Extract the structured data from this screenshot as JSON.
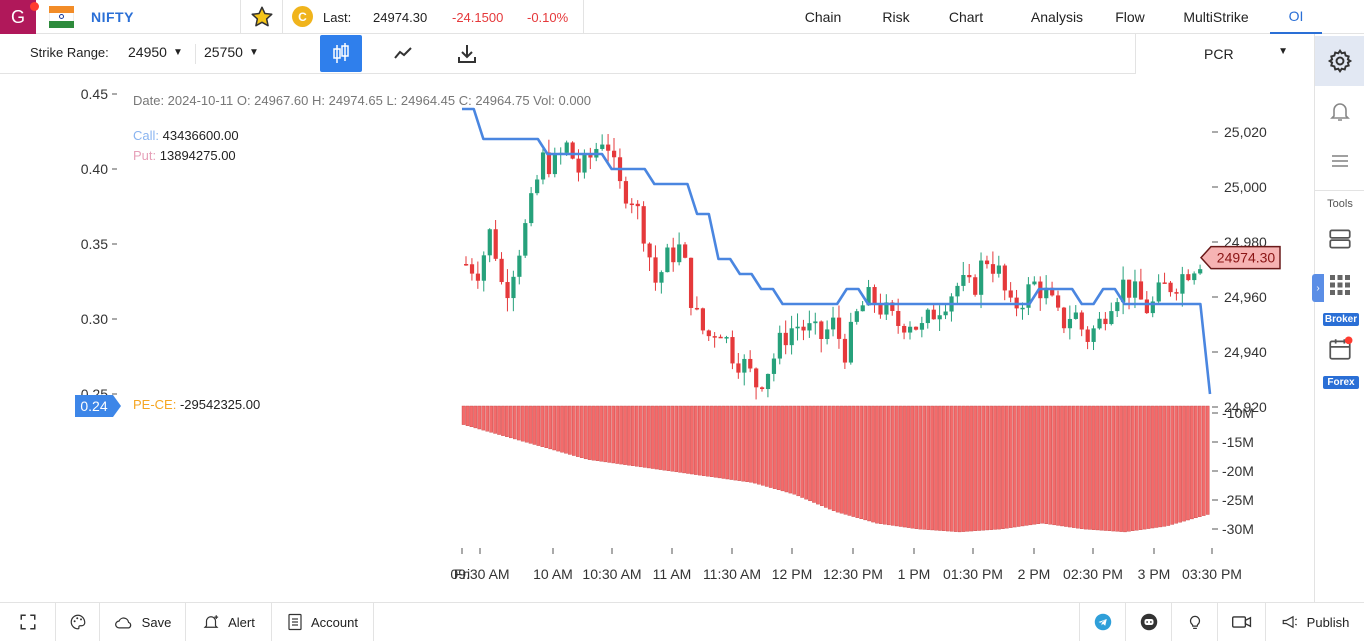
{
  "header": {
    "logo_letter": "G",
    "symbol": "NIFTY",
    "last_label": "Last:",
    "last_value": "24974.30",
    "change": "-24.1500",
    "change_pct": "-0.10%",
    "nav": [
      "Chain",
      "Risk",
      "Chart",
      "Analysis",
      "Flow",
      "MultiStrike",
      "OI"
    ],
    "active_nav": "OI",
    "colors": {
      "negative": "#e5393b",
      "accent": "#2a6fd6"
    }
  },
  "toolbar": {
    "strike_range_label": "Strike Range:",
    "strike_from": "24950",
    "strike_to": "25750",
    "indicator": "PCR",
    "icons": [
      "candlestick-icon",
      "line-chart-icon",
      "download-icon"
    ]
  },
  "sidebar": {
    "icons": [
      "gear-icon",
      "bell-icon",
      "list-icon",
      "server-icon",
      "grid-icon",
      "calendar-icon"
    ],
    "tools_label": "Tools",
    "broker_badge": "Broker",
    "forex_badge": "Forex"
  },
  "chart_info": {
    "ohlc_line": "Date: 2024-10-11 O: 24967.60 H: 24974.65 L: 24964.45 C: 24964.75 Vol: 0.000",
    "call_label": "Call:",
    "call_value": "43436600.00",
    "put_label": "Put:",
    "put_value": "13894275.00",
    "pece_label": "PE-CE:",
    "pece_value": "-29542325.00",
    "pcr_current": "0.24",
    "price_current": "24974.30",
    "colors": {
      "up": "#26a17b",
      "down": "#e5393b",
      "pcr_line": "#4a86e0",
      "volume": "#f36b6b",
      "pece_label": "#f5a623"
    }
  },
  "chart_data": {
    "type": "candlestick",
    "left_axis": {
      "label": "PCR",
      "ticks": [
        "0.45",
        "0.40",
        "0.35",
        "0.30",
        "0.25"
      ],
      "range": [
        0.24,
        0.45
      ]
    },
    "right_axis": {
      "label": "Price",
      "ticks": [
        "25,020",
        "25,000",
        "24,980",
        "24,960",
        "24,940",
        "24,920"
      ],
      "range": [
        24920,
        25030
      ]
    },
    "pece_axis": {
      "ticks": [
        "-10M",
        "-15M",
        "-20M",
        "-25M",
        "-30M"
      ],
      "range": [
        -31000000,
        -10000000
      ]
    },
    "x_ticks": [
      "Fri",
      "09:30 AM",
      "10 AM",
      "10:30 AM",
      "11 AM",
      "11:30 AM",
      "12 PM",
      "12:30 PM",
      "1 PM",
      "01:30 PM",
      "2 PM",
      "02:30 PM",
      "3 PM",
      "03:30 PM"
    ],
    "candles_close_path": [
      24972,
      24970,
      24985,
      24960,
      24975,
      24990,
      25010,
      25008,
      25015,
      25005,
      25012,
      25020,
      25000,
      24998,
      24985,
      24965,
      24975,
      24978,
      24955,
      24945,
      24950,
      24940,
      24935,
      24928,
      24935,
      24945,
      24950,
      24948,
      24945,
      24950,
      24940,
      24955,
      24960,
      24955,
      24950,
      24952,
      24948,
      24955,
      24960,
      24965,
      24962,
      24975,
      24970,
      24955,
      24960,
      24965,
      24960,
      24950,
      24955,
      24945,
      24950,
      24960,
      24965,
      24960,
      24955,
      24963,
      24965,
      24970,
      24974
    ],
    "pcr_line": [
      0.44,
      0.42,
      0.42,
      0.42,
      0.41,
      0.41,
      0.41,
      0.4,
      0.4,
      0.39,
      0.39,
      0.37,
      0.34,
      0.33,
      0.32,
      0.31,
      0.31,
      0.31,
      0.32,
      0.31,
      0.31,
      0.31,
      0.31,
      0.31,
      0.31,
      0.31,
      0.31,
      0.32,
      0.32,
      0.31,
      0.32,
      0.31,
      0.31,
      0.31,
      0.31,
      0.25
    ],
    "pece_series": [
      -12000000,
      -14000000,
      -16000000,
      -18000000,
      -19000000,
      -20000000,
      -21000000,
      -22000000,
      -24000000,
      -27000000,
      -29000000,
      -30000000,
      -30500000,
      -30000000,
      -29000000,
      -30000000,
      -30500000,
      -29500000,
      -27500000
    ]
  },
  "bottombar": {
    "save": "Save",
    "alert": "Alert",
    "account": "Account",
    "publish": "Publish"
  }
}
